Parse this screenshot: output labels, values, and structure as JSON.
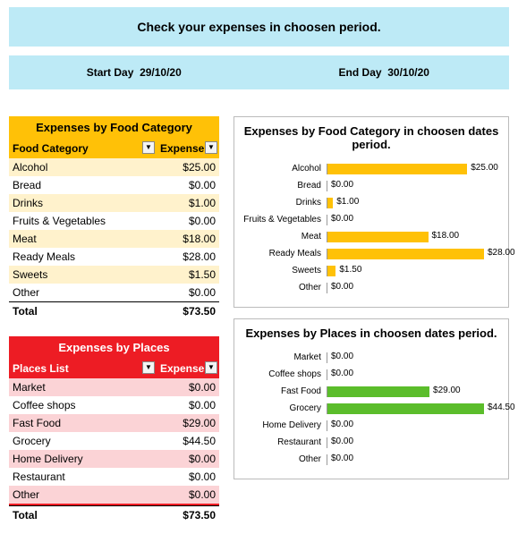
{
  "header": {
    "title": "Check your expenses in choosen period.",
    "start_label": "Start Day",
    "start_value": "29/10/20",
    "end_label": "End Day",
    "end_value": "30/10/20"
  },
  "food_table": {
    "title": "Expenses by Food Category",
    "col1": "Food Category",
    "col2": "Expenses",
    "color_header_bg": "#ffc107",
    "color_alt_bg": "#fff2cc",
    "rows": [
      {
        "label": "Alcohol",
        "amount": "$25.00"
      },
      {
        "label": "Bread",
        "amount": "$0.00"
      },
      {
        "label": "Drinks",
        "amount": "$1.00"
      },
      {
        "label": "Fruits & Vegetables",
        "amount": "$0.00"
      },
      {
        "label": "Meat",
        "amount": "$18.00"
      },
      {
        "label": "Ready Meals",
        "amount": "$28.00"
      },
      {
        "label": "Sweets",
        "amount": "$1.50"
      },
      {
        "label": "Other",
        "amount": "$0.00"
      }
    ],
    "total_label": "Total",
    "total_amount": "$73.50"
  },
  "places_table": {
    "title": "Expenses by Places",
    "col1": "Places List",
    "col2": "Expenses",
    "color_header_bg": "#ed1c24",
    "color_alt_bg": "#fbd3d6",
    "rows": [
      {
        "label": "Market",
        "amount": "$0.00"
      },
      {
        "label": "Coffee shops",
        "amount": "$0.00"
      },
      {
        "label": "Fast Food",
        "amount": "$29.00"
      },
      {
        "label": "Grocery",
        "amount": "$44.50"
      },
      {
        "label": "Home Delivery",
        "amount": "$0.00"
      },
      {
        "label": "Restaurant",
        "amount": "$0.00"
      },
      {
        "label": "Other",
        "amount": "$0.00"
      }
    ],
    "total_label": "Total",
    "total_amount": "$73.50"
  },
  "food_chart": {
    "type": "bar-horizontal",
    "title": "Expenses by Food Category in choosen dates period.",
    "bar_color": "#ffc107",
    "max": 28,
    "rows": [
      {
        "label": "Alcohol",
        "value": 25.0,
        "text": "$25.00"
      },
      {
        "label": "Bread",
        "value": 0.0,
        "text": "$0.00"
      },
      {
        "label": "Drinks",
        "value": 1.0,
        "text": "$1.00"
      },
      {
        "label": "Fruits & Vegetables",
        "value": 0.0,
        "text": "$0.00"
      },
      {
        "label": "Meat",
        "value": 18.0,
        "text": "$18.00"
      },
      {
        "label": "Ready Meals",
        "value": 28.0,
        "text": "$28.00"
      },
      {
        "label": "Sweets",
        "value": 1.5,
        "text": "$1.50"
      },
      {
        "label": "Other",
        "value": 0.0,
        "text": "$0.00"
      }
    ]
  },
  "places_chart": {
    "type": "bar-horizontal",
    "title": "Expenses by Places in choosen dates period.",
    "bar_color": "#5bbd2b",
    "max": 44.5,
    "rows": [
      {
        "label": "Market",
        "value": 0.0,
        "text": "$0.00"
      },
      {
        "label": "Coffee shops",
        "value": 0.0,
        "text": "$0.00"
      },
      {
        "label": "Fast Food",
        "value": 29.0,
        "text": "$29.00"
      },
      {
        "label": "Grocery",
        "value": 44.5,
        "text": "$44.50"
      },
      {
        "label": "Home Delivery",
        "value": 0.0,
        "text": "$0.00"
      },
      {
        "label": "Restaurant",
        "value": 0.0,
        "text": "$0.00"
      },
      {
        "label": "Other",
        "value": 0.0,
        "text": "$0.00"
      }
    ]
  }
}
